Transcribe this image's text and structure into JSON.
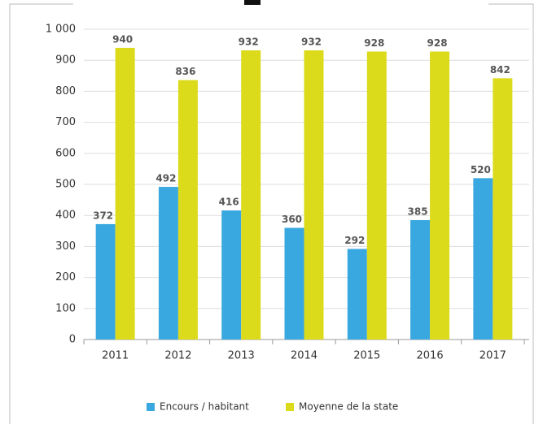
{
  "chart_data": {
    "type": "bar",
    "categories": [
      "2011",
      "2012",
      "2013",
      "2014",
      "2015",
      "2016",
      "2017"
    ],
    "series": [
      {
        "name": "Encours / habitant",
        "color": "#3aa8e0",
        "values": [
          372,
          492,
          416,
          360,
          292,
          385,
          520
        ]
      },
      {
        "name": "Moyenne de la state",
        "color": "#dbdb1b",
        "values": [
          940,
          836,
          932,
          932,
          928,
          928,
          842
        ]
      }
    ],
    "ylim": [
      0,
      1000
    ],
    "yticks": [
      0,
      100,
      200,
      300,
      400,
      500,
      600,
      700,
      800,
      900,
      {
        "value": 1000,
        "label": "1 000"
      }
    ],
    "grid": true
  }
}
